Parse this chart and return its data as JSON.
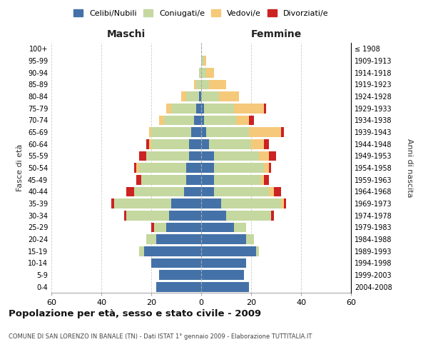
{
  "age_groups": [
    "0-4",
    "5-9",
    "10-14",
    "15-19",
    "20-24",
    "25-29",
    "30-34",
    "35-39",
    "40-44",
    "45-49",
    "50-54",
    "55-59",
    "60-64",
    "65-69",
    "70-74",
    "75-79",
    "80-84",
    "85-89",
    "90-94",
    "95-99",
    "100+"
  ],
  "birth_years": [
    "2004-2008",
    "1999-2003",
    "1994-1998",
    "1989-1993",
    "1984-1988",
    "1979-1983",
    "1974-1978",
    "1969-1973",
    "1964-1968",
    "1959-1963",
    "1954-1958",
    "1949-1953",
    "1944-1948",
    "1939-1943",
    "1934-1938",
    "1929-1933",
    "1924-1928",
    "1919-1923",
    "1914-1918",
    "1909-1913",
    "≤ 1908"
  ],
  "maschi": {
    "celibi": [
      18,
      17,
      20,
      23,
      18,
      14,
      13,
      12,
      7,
      6,
      6,
      5,
      5,
      4,
      3,
      2,
      1,
      0,
      0,
      0,
      0
    ],
    "coniugati": [
      0,
      0,
      0,
      2,
      4,
      5,
      17,
      23,
      20,
      18,
      19,
      17,
      15,
      16,
      12,
      10,
      5,
      2,
      1,
      0,
      0
    ],
    "vedovi": [
      0,
      0,
      0,
      0,
      0,
      0,
      0,
      0,
      0,
      0,
      1,
      0,
      1,
      1,
      2,
      2,
      2,
      1,
      0,
      0,
      0
    ],
    "divorziati": [
      0,
      0,
      0,
      0,
      0,
      1,
      1,
      1,
      3,
      2,
      1,
      3,
      1,
      0,
      0,
      0,
      0,
      0,
      0,
      0,
      0
    ]
  },
  "femmine": {
    "nubili": [
      19,
      17,
      18,
      22,
      18,
      13,
      10,
      8,
      5,
      5,
      5,
      5,
      3,
      2,
      1,
      1,
      0,
      0,
      0,
      0,
      0
    ],
    "coniugate": [
      0,
      0,
      0,
      1,
      3,
      5,
      18,
      24,
      22,
      19,
      20,
      18,
      17,
      17,
      13,
      12,
      7,
      3,
      2,
      1,
      0
    ],
    "vedove": [
      0,
      0,
      0,
      0,
      0,
      0,
      0,
      1,
      2,
      1,
      2,
      4,
      5,
      13,
      5,
      12,
      8,
      7,
      3,
      1,
      0
    ],
    "divorziate": [
      0,
      0,
      0,
      0,
      0,
      0,
      1,
      1,
      3,
      2,
      1,
      3,
      2,
      1,
      2,
      1,
      0,
      0,
      0,
      0,
      0
    ]
  },
  "colors": {
    "celibi": "#4472a8",
    "coniugati": "#c5d8a0",
    "vedovi": "#f5c97a",
    "divorziati": "#cc2222"
  },
  "xlim": 60,
  "title": "Popolazione per età, sesso e stato civile - 2009",
  "subtitle": "COMUNE DI SAN LORENZO IN BANALE (TN) - Dati ISTAT 1° gennaio 2009 - Elaborazione TUTTITALIA.IT",
  "ylabel_left": "Fasce di età",
  "ylabel_right": "Anni di nascita",
  "xlabel_left": "Maschi",
  "xlabel_right": "Femmine",
  "bg_color": "#ffffff",
  "grid_color": "#cccccc"
}
